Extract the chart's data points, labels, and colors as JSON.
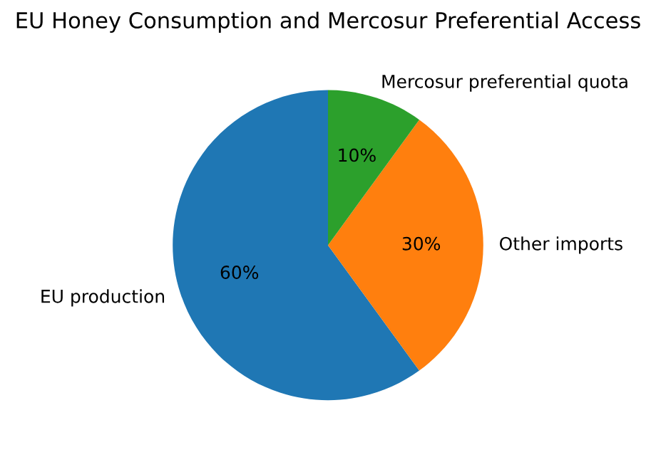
{
  "chart_data": {
    "type": "pie",
    "title": "EU Honey Consumption and Mercosur Preferential Access",
    "categories": [
      "EU production",
      "Other imports",
      "Mercosur preferential quota"
    ],
    "values": [
      60,
      30,
      10
    ],
    "colors": [
      "#1f77b4",
      "#ff7f0e",
      "#2ca02c"
    ],
    "value_labels": [
      "60%",
      "30%",
      "10%"
    ]
  }
}
